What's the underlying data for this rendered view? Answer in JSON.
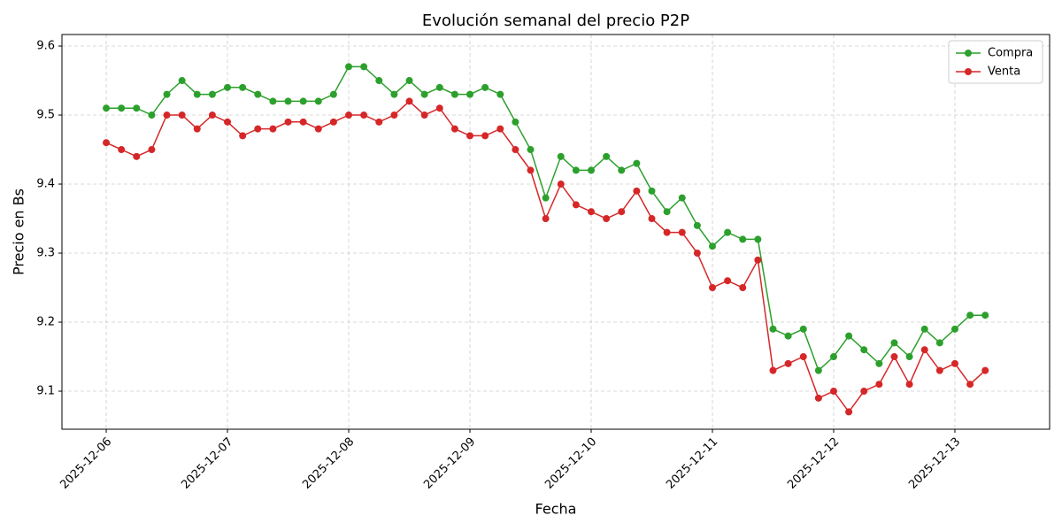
{
  "chart_data": {
    "type": "line",
    "title": "Evolución semanal del precio P2P",
    "x_label": "Fecha",
    "y_label": "Precio en Bs",
    "x": [
      "2025-12-06 00:00",
      "2025-12-06 03:00",
      "2025-12-06 06:00",
      "2025-12-06 09:00",
      "2025-12-06 12:00",
      "2025-12-06 15:00",
      "2025-12-06 18:00",
      "2025-12-06 21:00",
      "2025-12-07 00:00",
      "2025-12-07 03:00",
      "2025-12-07 06:00",
      "2025-12-07 09:00",
      "2025-12-07 12:00",
      "2025-12-07 15:00",
      "2025-12-07 18:00",
      "2025-12-07 21:00",
      "2025-12-08 00:00",
      "2025-12-08 03:00",
      "2025-12-08 06:00",
      "2025-12-08 09:00",
      "2025-12-08 12:00",
      "2025-12-08 15:00",
      "2025-12-08 18:00",
      "2025-12-08 21:00",
      "2025-12-09 00:00",
      "2025-12-09 03:00",
      "2025-12-09 06:00",
      "2025-12-09 09:00",
      "2025-12-09 12:00",
      "2025-12-09 15:00",
      "2025-12-09 18:00",
      "2025-12-09 21:00",
      "2025-12-10 00:00",
      "2025-12-10 03:00",
      "2025-12-10 06:00",
      "2025-12-10 09:00",
      "2025-12-10 12:00",
      "2025-12-10 15:00",
      "2025-12-10 18:00",
      "2025-12-10 21:00",
      "2025-12-11 00:00",
      "2025-12-11 03:00",
      "2025-12-11 06:00",
      "2025-12-11 09:00",
      "2025-12-11 12:00",
      "2025-12-11 15:00",
      "2025-12-11 18:00",
      "2025-12-11 21:00",
      "2025-12-12 00:00",
      "2025-12-12 03:00",
      "2025-12-12 06:00",
      "2025-12-12 09:00",
      "2025-12-12 12:00",
      "2025-12-12 15:00",
      "2025-12-12 18:00",
      "2025-12-12 21:00",
      "2025-12-13 00:00",
      "2025-12-13 03:00",
      "2025-12-13 06:00"
    ],
    "series": [
      {
        "name": "Compra",
        "color": "#2ca02c",
        "values": [
          9.51,
          9.51,
          9.51,
          9.5,
          9.53,
          9.55,
          9.53,
          9.53,
          9.54,
          9.54,
          9.53,
          9.52,
          9.52,
          9.52,
          9.52,
          9.53,
          9.57,
          9.57,
          9.55,
          9.53,
          9.55,
          9.53,
          9.54,
          9.53,
          9.53,
          9.54,
          9.53,
          9.49,
          9.45,
          9.38,
          9.44,
          9.42,
          9.42,
          9.44,
          9.42,
          9.43,
          9.39,
          9.36,
          9.38,
          9.34,
          9.31,
          9.33,
          9.32,
          9.32,
          9.19,
          9.18,
          9.19,
          9.13,
          9.15,
          9.18,
          9.16,
          9.14,
          9.17,
          9.15,
          9.19,
          9.17,
          9.19,
          9.21,
          9.21
        ]
      },
      {
        "name": "Venta",
        "color": "#d62728",
        "values": [
          9.46,
          9.45,
          9.44,
          9.45,
          9.5,
          9.5,
          9.48,
          9.5,
          9.49,
          9.47,
          9.48,
          9.48,
          9.49,
          9.49,
          9.48,
          9.49,
          9.5,
          9.5,
          9.49,
          9.5,
          9.52,
          9.5,
          9.51,
          9.48,
          9.47,
          9.47,
          9.48,
          9.45,
          9.42,
          9.35,
          9.4,
          9.37,
          9.36,
          9.35,
          9.36,
          9.39,
          9.35,
          9.33,
          9.33,
          9.3,
          9.25,
          9.26,
          9.25,
          9.29,
          9.13,
          9.14,
          9.15,
          9.09,
          9.1,
          9.07,
          9.1,
          9.11,
          9.15,
          9.11,
          9.16,
          9.13,
          9.14,
          9.11,
          9.13
        ]
      }
    ],
    "xlim": [
      "2025-12-05 15:14",
      "2025-12-13 18:45"
    ],
    "xticks": [
      "2025-12-06",
      "2025-12-07",
      "2025-12-08",
      "2025-12-09",
      "2025-12-10",
      "2025-12-11",
      "2025-12-12",
      "2025-12-13"
    ],
    "ylim": [
      9.0449,
      9.6167
    ],
    "yticks": [
      9.1,
      9.2,
      9.3,
      9.4,
      9.5,
      9.6
    ],
    "grid": true,
    "legend": "upper right"
  }
}
